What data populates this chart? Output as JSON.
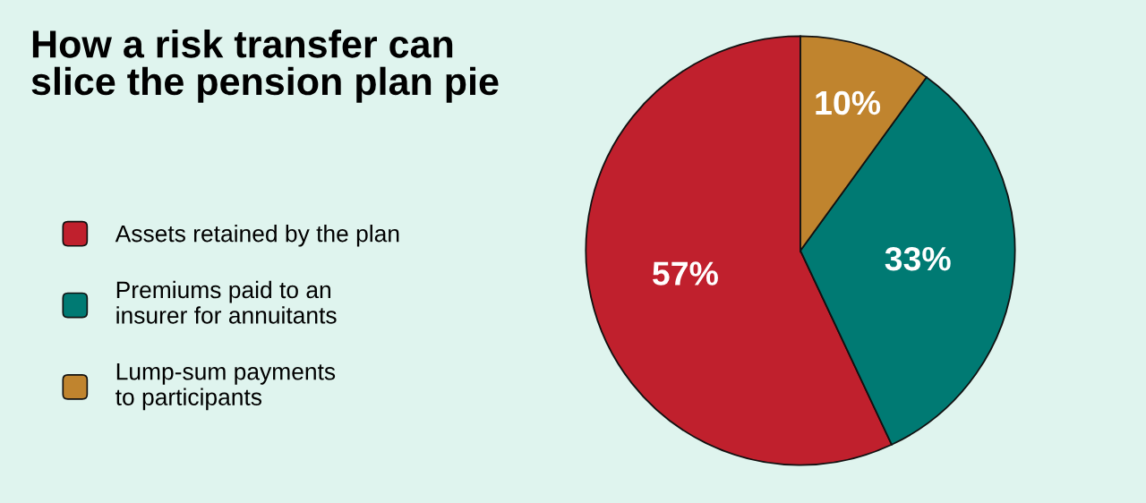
{
  "chart_data": {
    "type": "pie",
    "title": "How a risk transfer can\nslice the pension plan pie",
    "categories": [
      "Assets retained by the plan",
      "Premiums paid to an\ninsurer for annuitants",
      "Lump-sum payments\nto participants"
    ],
    "values": [
      57,
      33,
      10
    ],
    "colors": [
      "#c0202d",
      "#007a73",
      "#c0842e"
    ],
    "value_labels": [
      "57%",
      "33%",
      "10%"
    ],
    "legend": "left"
  }
}
